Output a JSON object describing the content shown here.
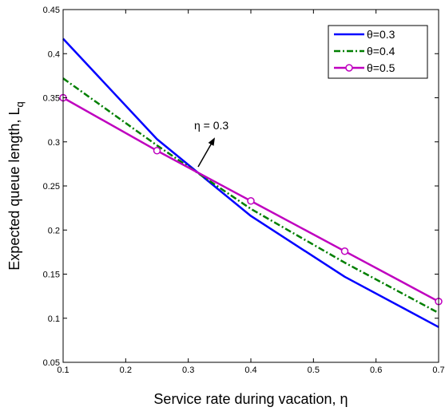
{
  "chart_data": {
    "type": "line",
    "title": "",
    "xlabel": "Service rate during vacation, η",
    "ylabel": "Expected queue length, L",
    "ylabel_subscript": "q",
    "xlim": [
      0.1,
      0.7
    ],
    "ylim": [
      0.05,
      0.45
    ],
    "x_ticks": [
      0.1,
      0.2,
      0.3,
      0.4,
      0.5,
      0.6,
      0.7
    ],
    "y_ticks": [
      0.05,
      0.1,
      0.15,
      0.2,
      0.25,
      0.3,
      0.35,
      0.4,
      0.45
    ],
    "x_tick_labels": [
      "0.1",
      "0.2",
      "0.3",
      "0.4",
      "0.5",
      "0.6",
      "0.7"
    ],
    "y_tick_labels": [
      "0.05",
      "0.1",
      "0.15",
      "0.2",
      "0.25",
      "0.3",
      "0.35",
      "0.4",
      "0.45"
    ],
    "grid": false,
    "legend_position": "top-right",
    "x": [
      0.1,
      0.25,
      0.4,
      0.55,
      0.7
    ],
    "series": [
      {
        "name": "θ=0.3",
        "values": [
          0.417,
          0.303,
          0.216,
          0.147,
          0.09
        ],
        "color": "#0000ff",
        "style": "solid",
        "marker": "none"
      },
      {
        "name": "θ=0.4",
        "values": [
          0.372,
          0.296,
          0.224,
          0.163,
          0.106
        ],
        "color": "#007f00",
        "style": "dashdot",
        "marker": "none"
      },
      {
        "name": "θ=0.5",
        "values": [
          0.35,
          0.29,
          0.233,
          0.176,
          0.119
        ],
        "color": "#bf00bf",
        "style": "solid",
        "marker": "circle"
      }
    ],
    "annotations": [
      {
        "text": "η = 0.3",
        "x": 0.3,
        "y": 0.266
      }
    ]
  }
}
